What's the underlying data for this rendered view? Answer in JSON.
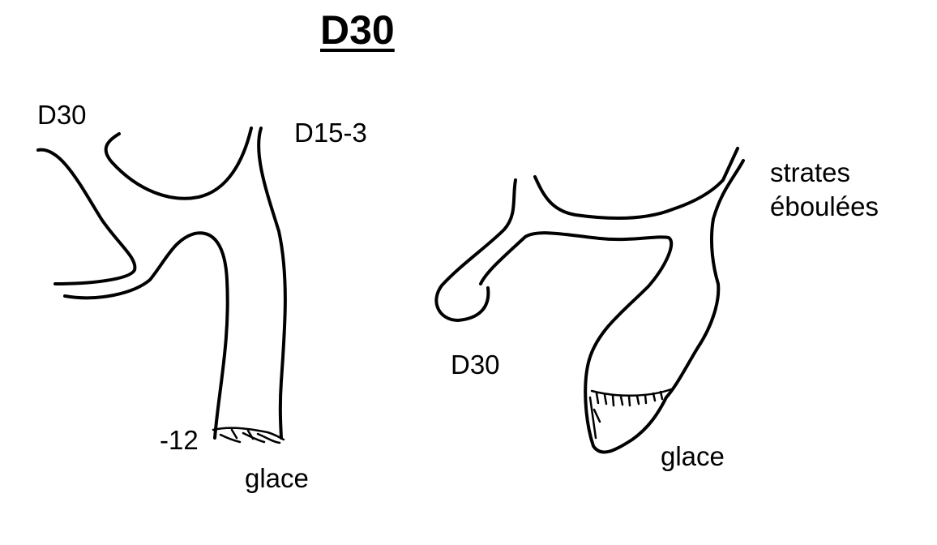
{
  "title": "D30",
  "left_sketch": {
    "label_d30": "D30",
    "label_d15_3": "D15-3",
    "label_depth": "-12",
    "label_ice": "glace"
  },
  "right_sketch": {
    "label_strates_line1": "strates",
    "label_strates_line2": "éboulées",
    "label_d30": "D30",
    "label_ice": "glace"
  }
}
